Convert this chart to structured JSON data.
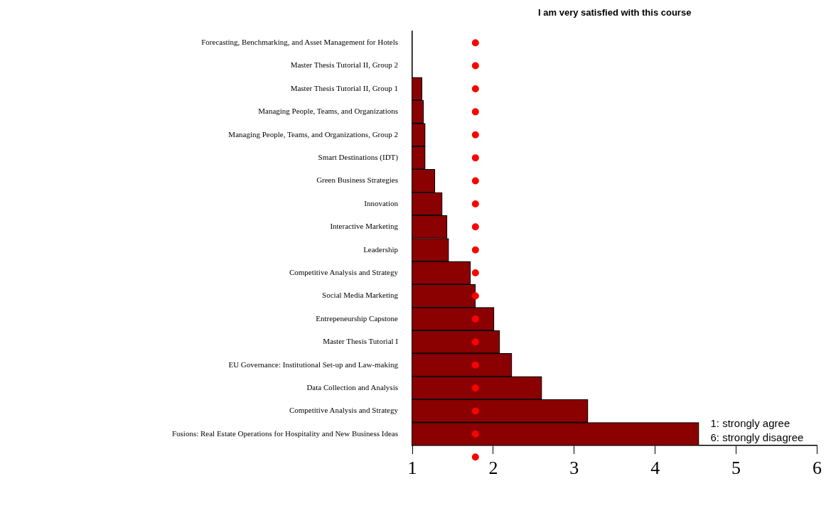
{
  "chart_data": {
    "type": "bar",
    "orientation": "horizontal",
    "title": "I am very satisfied with this course",
    "categories": [
      "Forecasting, Benchmarking, and Asset Management for Hotels",
      "Master Thesis Tutorial II, Group 2",
      "Master Thesis Tutorial II, Group 1",
      "Managing People, Teams, and Organizations",
      "Managing People, Teams, and Organizations, Group 2",
      "Smart Destinations (IDT)",
      "Green Business Strategies",
      "Innovation",
      "Interactive Marketing",
      "Leadership",
      "Competitive Analysis and Strategy",
      "Social Media Marketing",
      "Entrepeneurship Capstone",
      "Master Thesis Tutorial I",
      "EU Governance: Institutional Set-up and Law-making",
      "Data Collection and Analysis",
      "Competitive Analysis and Strategy",
      "Fusions: Real Estate Operations for Hospitality and New Business Ideas"
    ],
    "values": [
      1.0,
      1.0,
      1.12,
      1.14,
      1.16,
      1.16,
      1.28,
      1.37,
      1.43,
      1.45,
      1.72,
      1.78,
      2.01,
      2.08,
      2.23,
      2.6,
      3.17,
      4.54
    ],
    "color": "#8b0000",
    "xlim": [
      1,
      6
    ],
    "xticks": [
      1,
      2,
      3,
      4,
      5,
      6
    ],
    "grid": false,
    "legend": false,
    "ref_lines": [
      {
        "axis": "x",
        "value": 1.78,
        "color": "#ff0000",
        "line_style": "dotted"
      }
    ],
    "annotations": [
      "1: strongly agree",
      "6: strongly disagree"
    ]
  }
}
